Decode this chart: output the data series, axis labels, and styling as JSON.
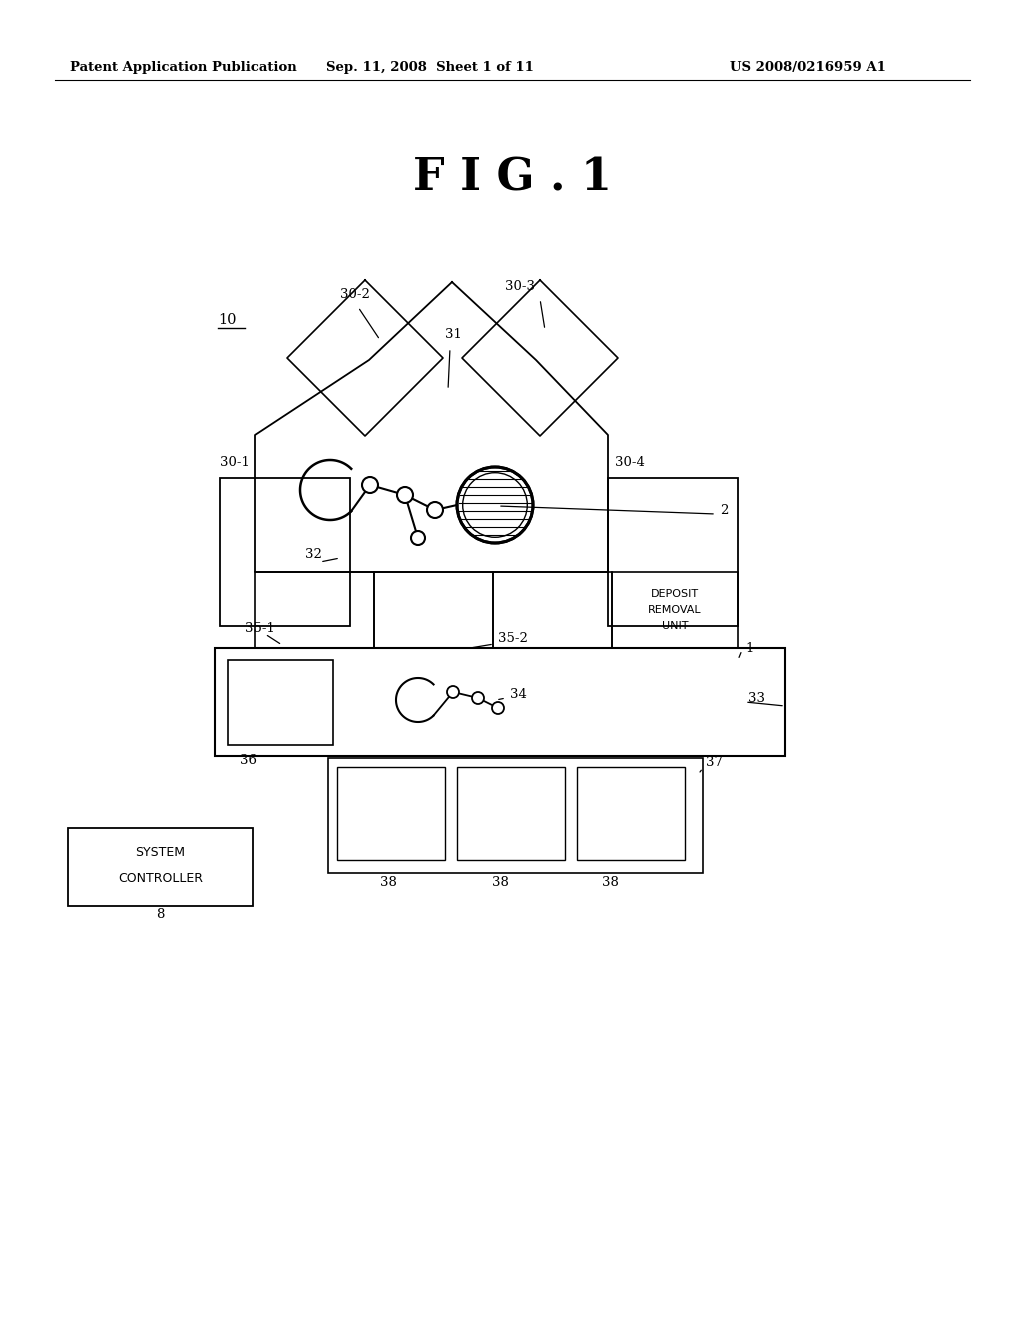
{
  "bg_color": "#ffffff",
  "line_color": "#000000",
  "header_left": "Patent Application Publication",
  "header_center": "Sep. 11, 2008  Sheet 1 of 11",
  "header_right": "US 2008/0216959 A1",
  "fig_title": "F I G . 1"
}
